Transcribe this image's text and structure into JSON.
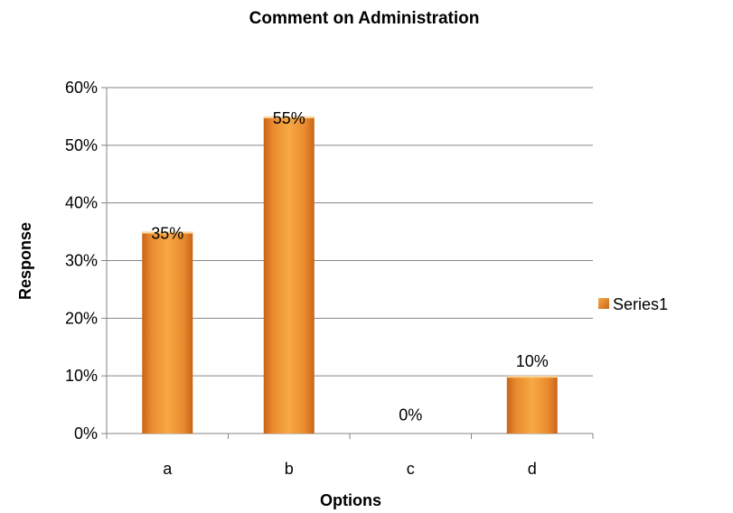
{
  "chart_data": {
    "type": "bar",
    "title": "Comment on Administration",
    "xlabel": "Options",
    "ylabel": "Response",
    "categories": [
      "a",
      "b",
      "c",
      "d"
    ],
    "series": [
      {
        "name": "Series1",
        "values": [
          35,
          55,
          0,
          10
        ],
        "color": "#F39C34"
      }
    ],
    "data_labels": [
      "35%",
      "55%",
      "0%",
      "10%"
    ],
    "yticks": [
      "0%",
      "10%",
      "20%",
      "30%",
      "40%",
      "50%",
      "60%"
    ],
    "ylim": [
      0,
      60
    ],
    "grid": true,
    "legend": "right"
  }
}
